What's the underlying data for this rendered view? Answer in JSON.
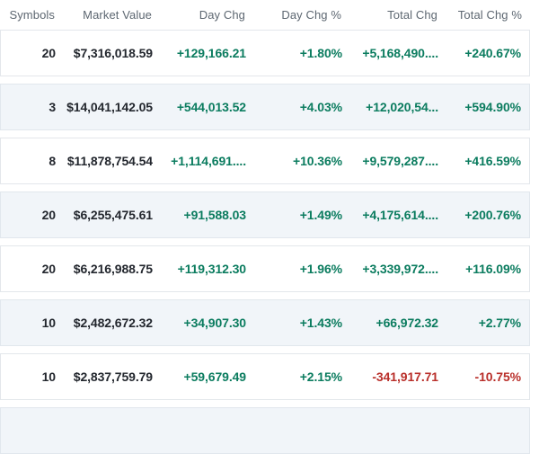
{
  "colors": {
    "positive": "#0b7c5f",
    "negative": "#b92f2a",
    "header_text": "#5d6771",
    "row_alt_background": "#f1f5f9"
  },
  "table": {
    "columns": [
      "Symbols",
      "Market Value",
      "Day Chg",
      "Day Chg %",
      "Total Chg",
      "Total Chg %"
    ],
    "rows": [
      {
        "symbols": "20",
        "market_value": "$7,316,018.59",
        "day_chg": "+129,166.21",
        "day_chg_pct": "+1.80%",
        "total_chg": "+5,168,490....",
        "total_chg_pct": "+240.67%"
      },
      {
        "symbols": "3",
        "market_value": "$14,041,142.05",
        "day_chg": "+544,013.52",
        "day_chg_pct": "+4.03%",
        "total_chg": "+12,020,54...",
        "total_chg_pct": "+594.90%"
      },
      {
        "symbols": "8",
        "market_value": "$11,878,754.54",
        "day_chg": "+1,114,691....",
        "day_chg_pct": "+10.36%",
        "total_chg": "+9,579,287....",
        "total_chg_pct": "+416.59%"
      },
      {
        "symbols": "20",
        "market_value": "$6,255,475.61",
        "day_chg": "+91,588.03",
        "day_chg_pct": "+1.49%",
        "total_chg": "+4,175,614....",
        "total_chg_pct": "+200.76%"
      },
      {
        "symbols": "20",
        "market_value": "$6,216,988.75",
        "day_chg": "+119,312.30",
        "day_chg_pct": "+1.96%",
        "total_chg": "+3,339,972....",
        "total_chg_pct": "+116.09%"
      },
      {
        "symbols": "10",
        "market_value": "$2,482,672.32",
        "day_chg": "+34,907.30",
        "day_chg_pct": "+1.43%",
        "total_chg": "+66,972.32",
        "total_chg_pct": "+2.77%"
      },
      {
        "symbols": "10",
        "market_value": "$2,837,759.79",
        "day_chg": "+59,679.49",
        "day_chg_pct": "+2.15%",
        "total_chg": "-341,917.71",
        "total_chg_pct": "-10.75%"
      }
    ]
  }
}
